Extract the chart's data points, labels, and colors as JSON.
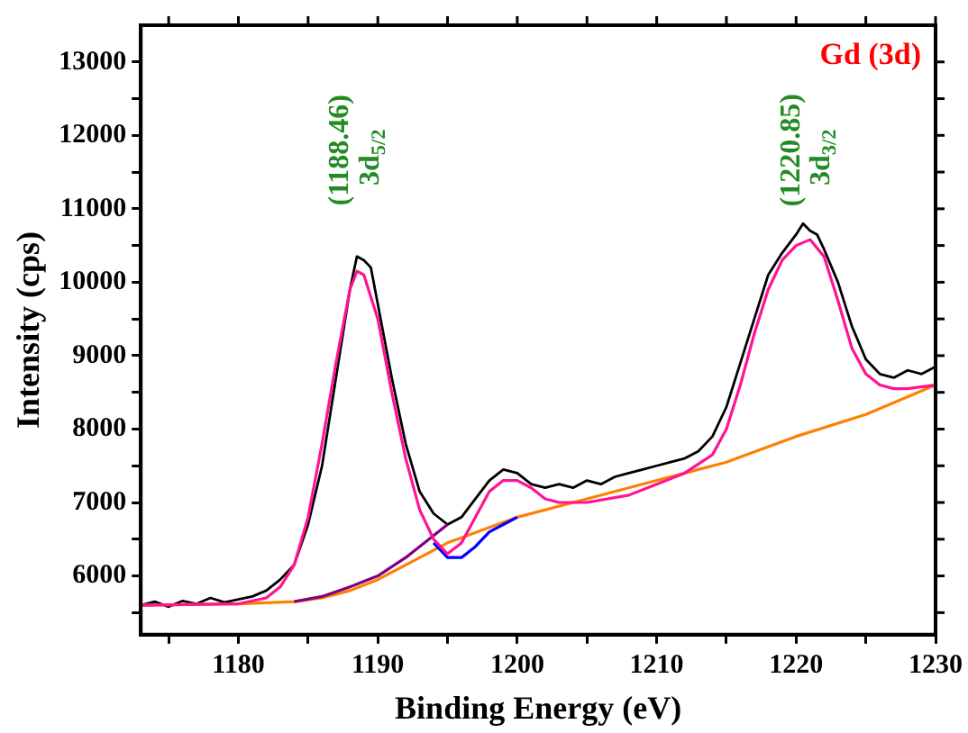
{
  "chart_data": {
    "type": "line",
    "xlabel": "Binding Energy (eV)",
    "ylabel": "Intensity (cps)",
    "xlim": [
      1173,
      1230
    ],
    "ylim": [
      5200,
      13500
    ],
    "xticks": [
      {
        "value": 1175,
        "label": null
      },
      1180,
      {
        "value": 1185,
        "label": null
      },
      1190,
      {
        "value": 1195,
        "label": null
      },
      1200,
      {
        "value": 1205,
        "label": null
      },
      1210,
      {
        "value": 1215,
        "label": null
      },
      1220,
      {
        "value": 1225,
        "label": null
      },
      1230
    ],
    "yticks": [
      {
        "value": 5500,
        "label": null
      },
      6000,
      {
        "value": 6500,
        "label": null
      },
      7000,
      {
        "value": 7500,
        "label": null
      },
      8000,
      {
        "value": 8500,
        "label": null
      },
      9000,
      {
        "value": 9500,
        "label": null
      },
      10000,
      {
        "value": 10500,
        "label": null
      },
      11000,
      {
        "value": 11500,
        "label": null
      },
      12000,
      {
        "value": 12500,
        "label": null
      },
      13000
    ],
    "grid": false,
    "legend": false,
    "marker": "none",
    "line_style": "solid",
    "series": [
      {
        "color": "#000000",
        "x": [
          1173,
          1174,
          1175,
          1176,
          1177,
          1178,
          1179,
          1180,
          1181,
          1182,
          1183,
          1184,
          1185,
          1186,
          1187,
          1188,
          1188.5,
          1189,
          1189.5,
          1190,
          1191,
          1192,
          1193,
          1194,
          1195,
          1196,
          1197,
          1198,
          1199,
          1200,
          1201,
          1202,
          1203,
          1204,
          1205,
          1206,
          1207,
          1208,
          1209,
          1210,
          1211,
          1212,
          1213,
          1214,
          1215,
          1216,
          1217,
          1218,
          1219,
          1220,
          1220.5,
          1221,
          1221.5,
          1222,
          1223,
          1224,
          1225,
          1226,
          1227,
          1228,
          1229,
          1230
        ],
        "values": [
          5600,
          5650,
          5580,
          5660,
          5620,
          5700,
          5640,
          5680,
          5720,
          5800,
          5950,
          6150,
          6700,
          7500,
          8700,
          9900,
          10350,
          10300,
          10200,
          9700,
          8700,
          7800,
          7150,
          6850,
          6700,
          6800,
          7050,
          7300,
          7450,
          7400,
          7250,
          7200,
          7250,
          7200,
          7300,
          7250,
          7350,
          7400,
          7450,
          7500,
          7550,
          7600,
          7700,
          7900,
          8300,
          8900,
          9500,
          10100,
          10400,
          10650,
          10800,
          10700,
          10650,
          10450,
          10000,
          9400,
          8950,
          8750,
          8700,
          8800,
          8750,
          8850
        ]
      },
      {
        "color": "#ff1493",
        "x": [
          1173,
          1180,
          1182,
          1183,
          1184,
          1185,
          1186,
          1187,
          1188,
          1188.5,
          1189,
          1190,
          1191,
          1192,
          1193,
          1194,
          1195,
          1196,
          1197,
          1198,
          1199,
          1200,
          1201,
          1202,
          1203,
          1205,
          1208,
          1210,
          1212,
          1214,
          1215,
          1216,
          1217,
          1218,
          1219,
          1220,
          1221,
          1222,
          1223,
          1224,
          1225,
          1226,
          1227,
          1228,
          1230
        ],
        "values": [
          5600,
          5620,
          5700,
          5850,
          6150,
          6800,
          7800,
          8900,
          9900,
          10150,
          10100,
          9500,
          8500,
          7600,
          6900,
          6500,
          6300,
          6450,
          6800,
          7150,
          7300,
          7300,
          7200,
          7050,
          7000,
          7000,
          7100,
          7250,
          7400,
          7650,
          8000,
          8600,
          9300,
          9900,
          10300,
          10500,
          10580,
          10350,
          9750,
          9100,
          8750,
          8600,
          8550,
          8550,
          8600
        ]
      },
      {
        "color": "#0000ff",
        "x": [
          1194,
          1195,
          1196,
          1197,
          1198,
          1199,
          1200
        ],
        "values": [
          6450,
          6250,
          6250,
          6400,
          6600,
          6700,
          6800
        ]
      },
      {
        "color": "#800080",
        "x": [
          1184,
          1186,
          1188,
          1190,
          1192,
          1193,
          1194,
          1195
        ],
        "values": [
          5650,
          5720,
          5850,
          6000,
          6250,
          6400,
          6550,
          6700
        ]
      },
      {
        "color": "#ff8000",
        "x": [
          1173,
          1180,
          1184,
          1186,
          1188,
          1190,
          1192,
          1195,
          1200,
          1205,
          1210,
          1215,
          1220,
          1225,
          1230
        ],
        "values": [
          5600,
          5620,
          5650,
          5700,
          5800,
          5950,
          6150,
          6450,
          6800,
          7050,
          7300,
          7550,
          7900,
          8200,
          8600
        ]
      }
    ],
    "annotations": [
      "Gd (3d)",
      "(1188.46)",
      "3d$_{5/2}$",
      "(1220.85)",
      "3d$_{3/2}$"
    ]
  }
}
